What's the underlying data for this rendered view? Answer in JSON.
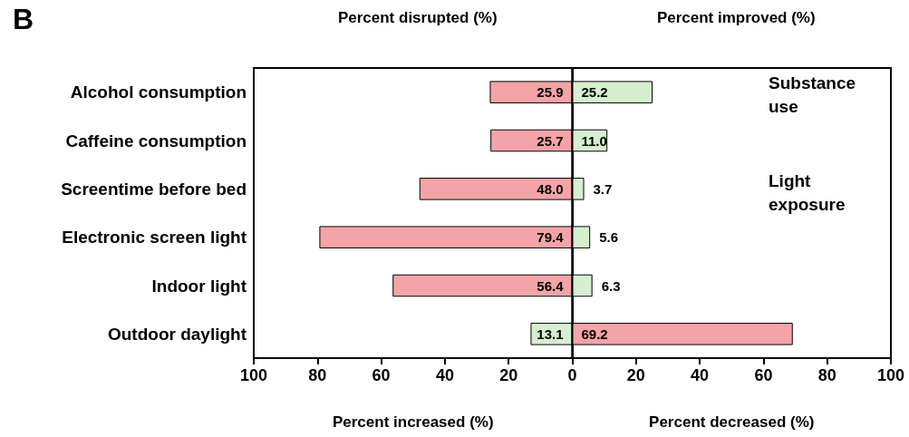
{
  "chart_data": [
    {
      "type": "bar",
      "orientation": "horizontal",
      "title": "Percent disrupted (%)",
      "xlabel": "Percent increased (%)",
      "categories": [
        "Alcohol consumption",
        "Caffeine consumption",
        "Screentime before bed",
        "Electronic screen light",
        "Indoor light",
        "Outdoor daylight"
      ],
      "values": [
        25.9,
        25.7,
        48.0,
        79.4,
        56.4,
        13.1
      ],
      "colors": [
        "#f4a3a6",
        "#f4a3a6",
        "#f4a3a6",
        "#f4a3a6",
        "#f4a3a6",
        "#d6efcf"
      ],
      "value_labels": [
        "25.9",
        "25.7",
        "48.0",
        "79.4",
        "56.4",
        "13.1"
      ],
      "xlim": [
        100,
        0
      ],
      "xticks": [
        100,
        80,
        60,
        40,
        20,
        0
      ],
      "annotations": [
        "B"
      ]
    },
    {
      "type": "bar",
      "orientation": "horizontal",
      "title": "Percent improved (%)",
      "xlabel": "Percent decreased (%)",
      "categories": [
        null,
        null,
        null,
        null,
        null,
        null
      ],
      "values": [
        25.2,
        11.0,
        3.7,
        5.6,
        6.3,
        69.2
      ],
      "colors": [
        "#d6efcf",
        "#d6efcf",
        "#d6efcf",
        "#d6efcf",
        "#d6efcf",
        "#f4a3a6"
      ],
      "value_labels": [
        "25.2",
        "11.0",
        "3.7",
        "5.6",
        "6.3",
        "69.2"
      ],
      "xlim": [
        0,
        100
      ],
      "xticks": [
        {
          "value": 0,
          "label": null
        },
        20,
        40,
        60,
        80,
        100
      ],
      "tick_labels": "x",
      "annotations": [
        "Substance use",
        "Light exposure"
      ]
    }
  ]
}
